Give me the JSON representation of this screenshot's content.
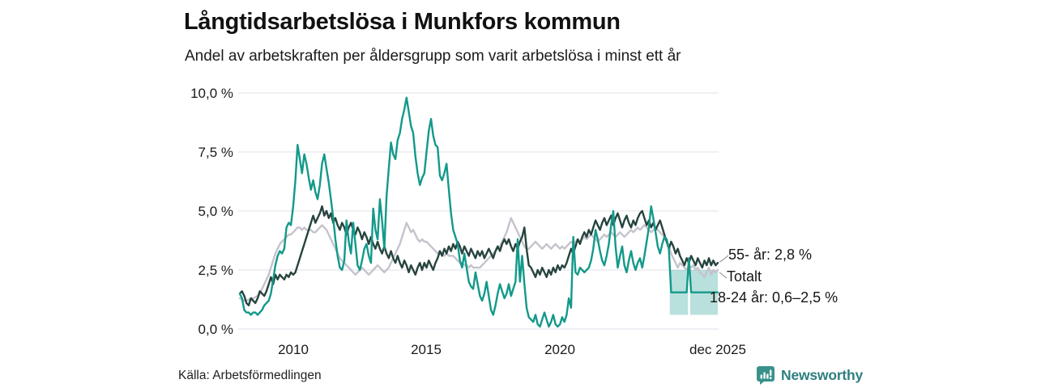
{
  "title": "Långtidsarbetslösa i Munkfors kommun",
  "subtitle": "Andel av arbetskraften per åldersgrupp som varit arbetslösa i minst ett år",
  "source": "Källa: Arbetsförmedlingen",
  "branding": {
    "name": "Newsworthy",
    "icon": "bar-chart-speech-bubble-icon",
    "text_color": "#2e7f80",
    "icon_color": "#3a918b"
  },
  "chart_data": {
    "type": "line",
    "title": "Långtidsarbetslösa i Munkfors kommun",
    "subtitle": "Andel av arbetskraften per åldersgrupp som varit arbetslösa i minst ett år",
    "x_start": "2008-01",
    "x_end": "2025-12",
    "frequency": "monthly",
    "ylim": [
      0,
      10
    ],
    "grid": true,
    "y_ticks": [
      "10,0 %",
      "7,5 %",
      "5,0 %",
      "2,5 %",
      "0,0 %"
    ],
    "y_tick_values": [
      10,
      7.5,
      5,
      2.5,
      0
    ],
    "x_ticks": [
      "2010",
      "2015",
      "2020",
      "dec 2025"
    ],
    "x_tick_indices": [
      24,
      84,
      144,
      215
    ],
    "gridline_color": "#e7e6ed",
    "series": [
      {
        "name": "55- år",
        "label": "55- år: 2,8 %",
        "last_value": "2,8 %",
        "color": "#27443f",
        "values": [
          1.5,
          1.6,
          1.4,
          1.1,
          1.0,
          1.3,
          1.2,
          1.1,
          1.3,
          1.6,
          1.5,
          1.4,
          1.6,
          1.9,
          2.2,
          1.9,
          2.3,
          2.1,
          2.3,
          2.2,
          2.1,
          2.3,
          2.2,
          2.4,
          2.3,
          2.4,
          2.7,
          3.0,
          3.3,
          3.6,
          3.9,
          4.2,
          4.5,
          4.8,
          4.5,
          4.7,
          4.9,
          5.2,
          4.8,
          5.0,
          4.7,
          4.9,
          4.5,
          4.7,
          4.4,
          4.2,
          4.5,
          4.3,
          4.0,
          4.3,
          4.5,
          4.2,
          4.0,
          4.3,
          4.1,
          3.8,
          4.1,
          3.9,
          3.6,
          3.9,
          3.6,
          3.4,
          3.7,
          3.4,
          3.2,
          3.5,
          3.2,
          3.0,
          3.3,
          3.0,
          2.8,
          3.1,
          2.8,
          2.6,
          2.9,
          2.7,
          2.4,
          2.7,
          2.5,
          2.3,
          2.6,
          2.8,
          2.5,
          2.8,
          2.6,
          2.9,
          2.7,
          2.5,
          2.8,
          3.0,
          3.3,
          3.1,
          3.4,
          3.2,
          3.5,
          3.3,
          3.6,
          3.4,
          3.7,
          3.5,
          3.2,
          3.5,
          3.3,
          3.1,
          3.4,
          3.2,
          3.0,
          3.3,
          3.1,
          3.3,
          3.0,
          3.2,
          3.4,
          3.2,
          3.0,
          3.3,
          3.5,
          3.3,
          3.6,
          3.8,
          3.6,
          3.8,
          3.5,
          3.3,
          3.6,
          3.4,
          3.7,
          3.9,
          4.3,
          3.4,
          2.7,
          2.6,
          2.4,
          2.2,
          2.5,
          2.3,
          2.6,
          2.4,
          2.2,
          2.5,
          2.3,
          2.6,
          2.4,
          2.7,
          2.5,
          2.7,
          2.6,
          2.8,
          3.1,
          3.4,
          3.2,
          3.5,
          3.8,
          3.6,
          3.9,
          4.1,
          3.9,
          4.2,
          4.0,
          4.3,
          4.6,
          4.4,
          4.2,
          4.5,
          4.7,
          4.4,
          4.6,
          4.8,
          4.4,
          4.7,
          4.9,
          4.6,
          4.3,
          4.6,
          4.8,
          4.5,
          4.3,
          4.6,
          4.4,
          4.7,
          4.9,
          5.0,
          4.7,
          4.4,
          4.6,
          4.3,
          4.5,
          4.2,
          4.4,
          4.6,
          4.3,
          4.0,
          3.7,
          3.4,
          3.7,
          3.5,
          3.2,
          3.4,
          3.1,
          2.9,
          2.7,
          3.0,
          2.8,
          3.1,
          2.9,
          2.7,
          3.0,
          2.8,
          2.6,
          2.9,
          2.7,
          3.0,
          2.7,
          2.9,
          2.7,
          2.8
        ]
      },
      {
        "name": "Totalt",
        "label": "Totalt",
        "color": "#c5c3cd",
        "values": [
          1.3,
          1.25,
          1.2,
          1.2,
          1.25,
          1.3,
          1.3,
          1.35,
          1.4,
          1.5,
          1.7,
          1.9,
          2.1,
          2.3,
          2.6,
          2.9,
          3.2,
          3.4,
          3.6,
          3.7,
          3.8,
          3.9,
          4.0,
          4.0,
          4.1,
          4.2,
          4.3,
          4.3,
          4.2,
          4.3,
          4.2,
          4.2,
          4.2,
          4.1,
          4.1,
          4.2,
          4.3,
          4.4,
          4.3,
          4.2,
          4.0,
          3.8,
          3.6,
          3.4,
          3.2,
          3.0,
          2.9,
          2.8,
          2.7,
          2.6,
          2.5,
          2.4,
          2.3,
          2.4,
          2.5,
          2.6,
          2.5,
          2.4,
          2.3,
          2.4,
          2.5,
          2.6,
          2.7,
          2.6,
          2.5,
          2.4,
          2.5,
          2.6,
          2.8,
          3.0,
          3.2,
          3.4,
          3.6,
          3.9,
          4.2,
          4.5,
          4.3,
          4.1,
          4.2,
          4.0,
          3.8,
          3.7,
          3.8,
          3.7,
          3.7,
          3.6,
          3.5,
          3.4,
          3.3,
          3.2,
          3.3,
          3.2,
          3.1,
          3.2,
          3.1,
          3.1,
          3.1,
          3.0,
          2.9,
          2.8,
          2.8,
          2.7,
          2.7,
          2.6,
          2.7,
          2.6,
          2.6,
          2.6,
          2.6,
          2.7,
          2.8,
          2.9,
          3.0,
          3.1,
          3.2,
          3.3,
          3.4,
          3.5,
          3.7,
          3.9,
          4.1,
          4.4,
          4.7,
          4.5,
          4.3,
          4.1,
          3.9,
          3.7,
          3.5,
          3.4,
          3.4,
          3.5,
          3.6,
          3.7,
          3.6,
          3.5,
          3.4,
          3.5,
          3.6,
          3.5,
          3.4,
          3.5,
          3.6,
          3.5,
          3.4,
          3.5,
          3.4,
          3.5,
          3.6,
          3.7,
          3.6,
          3.7,
          3.8,
          3.7,
          3.8,
          3.9,
          3.8,
          3.9,
          4.0,
          3.9,
          3.8,
          3.7,
          3.8,
          3.9,
          4.0,
          3.9,
          4.0,
          4.1,
          4.0,
          3.9,
          4.0,
          4.1,
          4.0,
          3.9,
          4.0,
          4.1,
          4.2,
          4.1,
          4.2,
          4.3,
          4.2,
          4.3,
          4.4,
          4.3,
          4.2,
          4.1,
          4.2,
          4.3,
          4.2,
          4.1,
          4.0,
          3.9,
          3.7,
          3.5,
          3.2,
          3.0,
          2.8,
          2.6,
          2.8,
          2.7,
          2.6,
          2.5,
          2.7,
          2.6,
          2.7,
          2.5,
          2.6,
          2.4,
          2.3,
          2.2,
          2.4,
          2.6,
          2.3,
          2.5,
          2.4,
          2.5
        ]
      },
      {
        "name": "18-24 år",
        "label": "18-24 år: 0,6–2,5 %",
        "last_value": "0,6–2,5 %",
        "color": "#13998a",
        "values": [
          1.5,
          1.3,
          0.8,
          0.7,
          0.7,
          0.6,
          0.7,
          0.7,
          0.6,
          0.7,
          0.8,
          1.0,
          1.1,
          1.2,
          1.5,
          2.1,
          2.7,
          3.1,
          3.3,
          3.2,
          3.4,
          4.3,
          4.5,
          4.4,
          5.2,
          6.3,
          7.8,
          7.2,
          6.6,
          7.4,
          7.0,
          6.4,
          5.9,
          6.3,
          5.8,
          5.5,
          6.1,
          7.0,
          7.4,
          6.8,
          6.2,
          5.5,
          4.7,
          3.8,
          3.1,
          2.6,
          2.5,
          2.9,
          4.6,
          3.7,
          3.2,
          4.5,
          3.6,
          2.7,
          2.5,
          2.9,
          3.4,
          3.6,
          3.1,
          2.8,
          5.1,
          4.2,
          3.8,
          5.5,
          4.6,
          3.4,
          5.6,
          6.8,
          7.9,
          7.4,
          7.2,
          8.0,
          8.3,
          8.9,
          9.3,
          9.8,
          9.2,
          8.6,
          8.3,
          7.3,
          6.6,
          6.1,
          6.4,
          6.6,
          7.5,
          8.4,
          8.9,
          8.2,
          7.8,
          7.7,
          6.5,
          6.3,
          6.6,
          7.0,
          5.9,
          4.9,
          4.2,
          3.9,
          3.6,
          2.9,
          2.6,
          3.2,
          2.6,
          2.0,
          1.8,
          1.7,
          2.4,
          1.9,
          1.4,
          1.2,
          1.5,
          2.0,
          1.4,
          0.8,
          0.6,
          1.0,
          1.5,
          1.9,
          1.6,
          1.3,
          1.5,
          1.9,
          1.4,
          1.7,
          2.0,
          3.8,
          2.0,
          3.1,
          1.9,
          0.9,
          0.5,
          0.4,
          0.3,
          0.6,
          0.2,
          0.1,
          0.4,
          0.7,
          0.4,
          0.1,
          0.3,
          0.6,
          0.2,
          0.1,
          0.2,
          0.5,
          0.3,
          0.6,
          1.3,
          0.9,
          3.9,
          2.4,
          2.3,
          2.6,
          2.5,
          2.4,
          2.5,
          2.6,
          2.9,
          3.4,
          4.2,
          3.8,
          3.3,
          2.9,
          2.7,
          3.1,
          3.6,
          4.4,
          5.0,
          3.5,
          2.6,
          3.1,
          3.5,
          2.7,
          2.4,
          2.9,
          3.3,
          2.8,
          2.5,
          2.8,
          3.0,
          2.6,
          3.1,
          3.7,
          4.3,
          5.2,
          4.7,
          4.1,
          3.5,
          3.2,
          3.6,
          3.9,
          3.8,
          3.4,
          1.55,
          1.55,
          1.55,
          1.55,
          1.55,
          1.55,
          1.55,
          1.55,
          3.0,
          1.55,
          1.55,
          1.55,
          1.55,
          1.55,
          1.55,
          1.55,
          1.55,
          1.55,
          1.55,
          1.55,
          1.55,
          1.55
        ],
        "uncertainty_band": {
          "low": 0.6,
          "high": 2.5,
          "color": "#13998a",
          "opacity": 0.3,
          "segments": [
            {
              "from_index": 193.4,
              "to_index": 201.6
            },
            {
              "from_index": 202.6,
              "to_index": 215
            }
          ]
        }
      }
    ]
  }
}
